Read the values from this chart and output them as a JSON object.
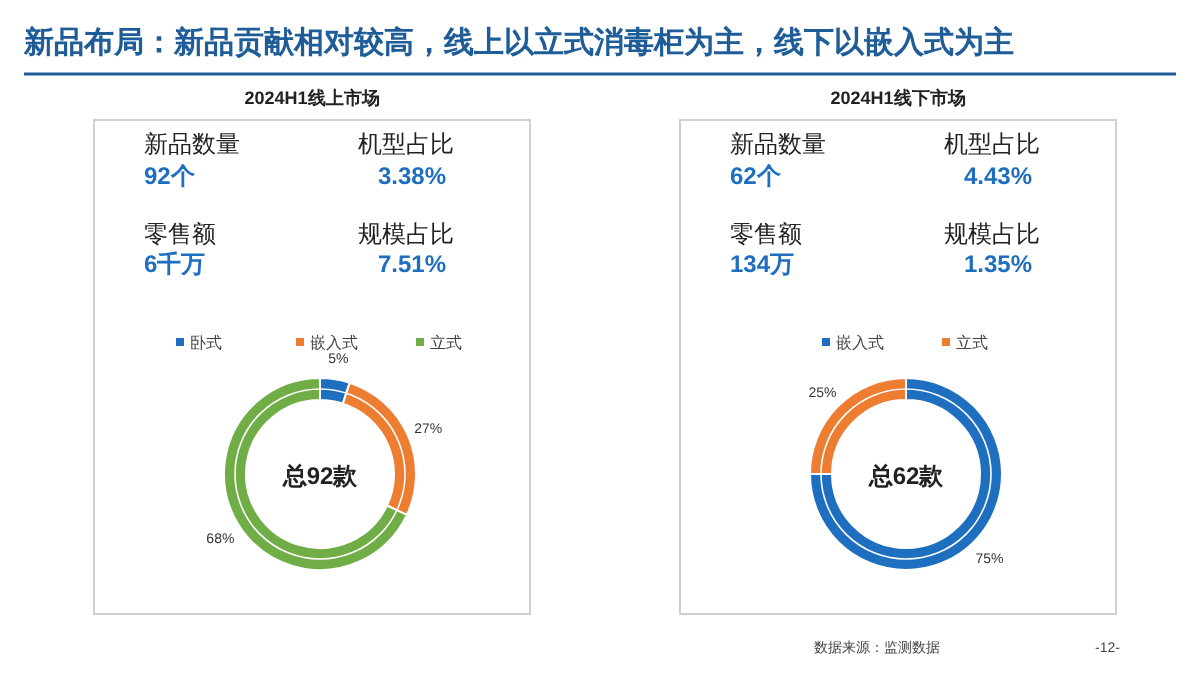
{
  "chart_data": [
    {
      "type": "other",
      "title": "新品布局：新品贡献相对较高，线上以立式消毒柜为主，线下以嵌入式为主",
      "annotations": [
        "数据来源：监测数据",
        "-12-"
      ]
    },
    {
      "type": "donut",
      "title": "2024H1线上市场",
      "categories": [
        "卧式",
        "嵌入式",
        "立式"
      ],
      "values": [
        5,
        27,
        68
      ],
      "value_labels": [
        "5%",
        "27%",
        "68%"
      ],
      "colors": [
        "#1f6fc0",
        "#ed7d31",
        "#70ad47"
      ],
      "legend": "top",
      "annotations": [
        "新品数量",
        "92个",
        "机型占比",
        "3.38%",
        "零售额",
        "6千万",
        "规模占比",
        "7.51%",
        "总92款"
      ]
    },
    {
      "type": "donut",
      "title": "2024H1线下市场",
      "categories": [
        "嵌入式",
        "立式"
      ],
      "values": [
        75,
        25
      ],
      "value_labels": [
        "75%",
        "25%"
      ],
      "colors": [
        "#1f6fc0",
        "#ed7d31"
      ],
      "legend": "top",
      "annotations": [
        "新品数量",
        "62个",
        "机型占比",
        "4.43%",
        "零售额",
        "134万",
        "规模占比",
        "1.35%",
        "总62款"
      ]
    }
  ]
}
